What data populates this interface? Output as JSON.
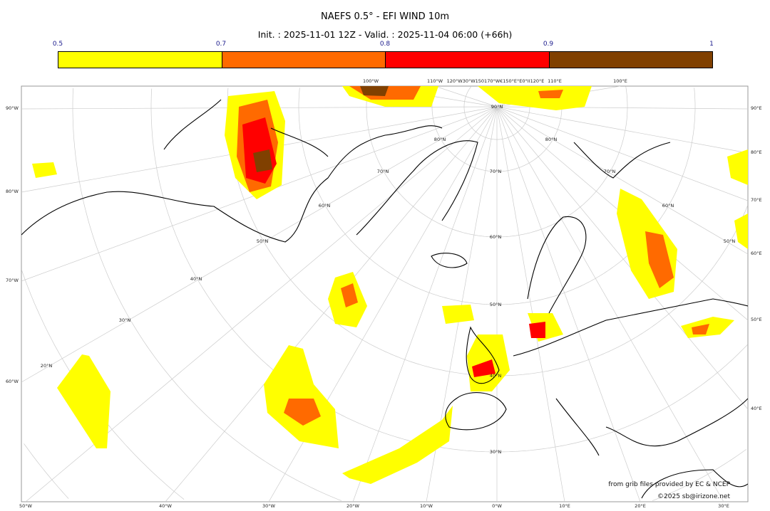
{
  "title": "NAEFS 0.5° - EFI WIND 10m",
  "subtitle": "Init. : 2025-11-01 12Z - Valid. : 2025-11-04 06:00 (+66h)",
  "legend": {
    "ticks": [
      "0.5",
      "0.7",
      "0.8",
      "0.9",
      "1"
    ],
    "colors": [
      "#ffff00",
      "#ff6a00",
      "#ff0000",
      "#804000"
    ]
  },
  "axes": {
    "left": [
      "90°W",
      "80°W",
      "70°W",
      "60°W"
    ],
    "right": [
      "90°E",
      "80°E",
      "70°E",
      "60°E",
      "50°E",
      "40°E"
    ],
    "bottom": [
      "50°W",
      "40°W",
      "30°W",
      "20°W",
      "10°W",
      "0°W",
      "10°E",
      "20°E",
      "30°E"
    ],
    "top": [
      "100°W",
      "110°W",
      "120°W30°W150170°W€150°E°E0°II120°E",
      "110°E",
      "100°E"
    ],
    "parallels": [
      "90°N",
      "80°N",
      "80°N",
      "70°N",
      "70°N",
      "70°N",
      "60°N",
      "60°N",
      "60°N",
      "50°N",
      "50°N",
      "50°N",
      "40°N",
      "40°N",
      "30°N",
      "30°N",
      "20°N"
    ]
  },
  "credits": {
    "line1": "from grib files provided by EC & NCEP",
    "line2": "©2025 sb@irizone.net"
  }
}
